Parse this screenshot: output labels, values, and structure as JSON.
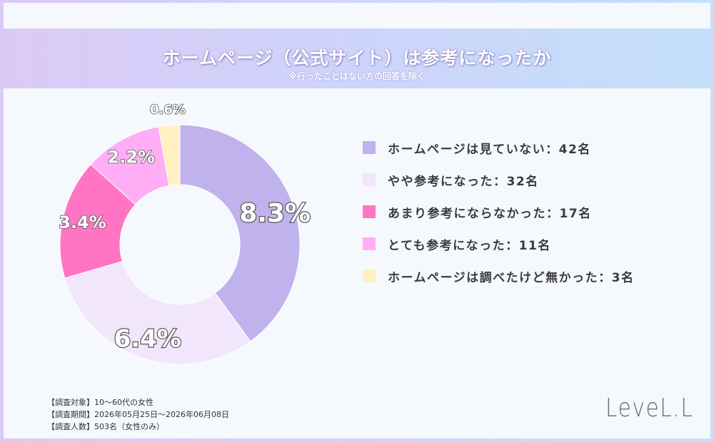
{
  "header": {
    "title": "ホームページ（公式サイト）は参考になったか",
    "subtitle": "※行ったことはない方の回答を除く"
  },
  "chart_data": {
    "type": "pie",
    "style": "donut",
    "slices": [
      {
        "label": "ホームページは見ていない：42名",
        "value": 42,
        "pct_label": "8.3%",
        "color": "#c0b2ed"
      },
      {
        "label": "やや参考になった：32名",
        "value": 32,
        "pct_label": "6.4%",
        "color": "#f1e6fb"
      },
      {
        "label": "あまり参考にならなかった：17名",
        "value": 17,
        "pct_label": "3.4%",
        "color": "#ff75c4"
      },
      {
        "label": "とても参考になった：11名",
        "value": 11,
        "pct_label": "2.2%",
        "color": "#ffaef6"
      },
      {
        "label": "ホームページは調べたけど無かった：3名",
        "value": 3,
        "pct_label": "0.6%",
        "color": "#fff1c2"
      }
    ],
    "legend_position": "right"
  },
  "notes": {
    "target": "【調査対象】10～60代の女性",
    "period": "【調査期間】2026年05月25日～2026年06月08日",
    "count": "【調査人数】503名（女性のみ）"
  },
  "brand": "LeveL.L"
}
